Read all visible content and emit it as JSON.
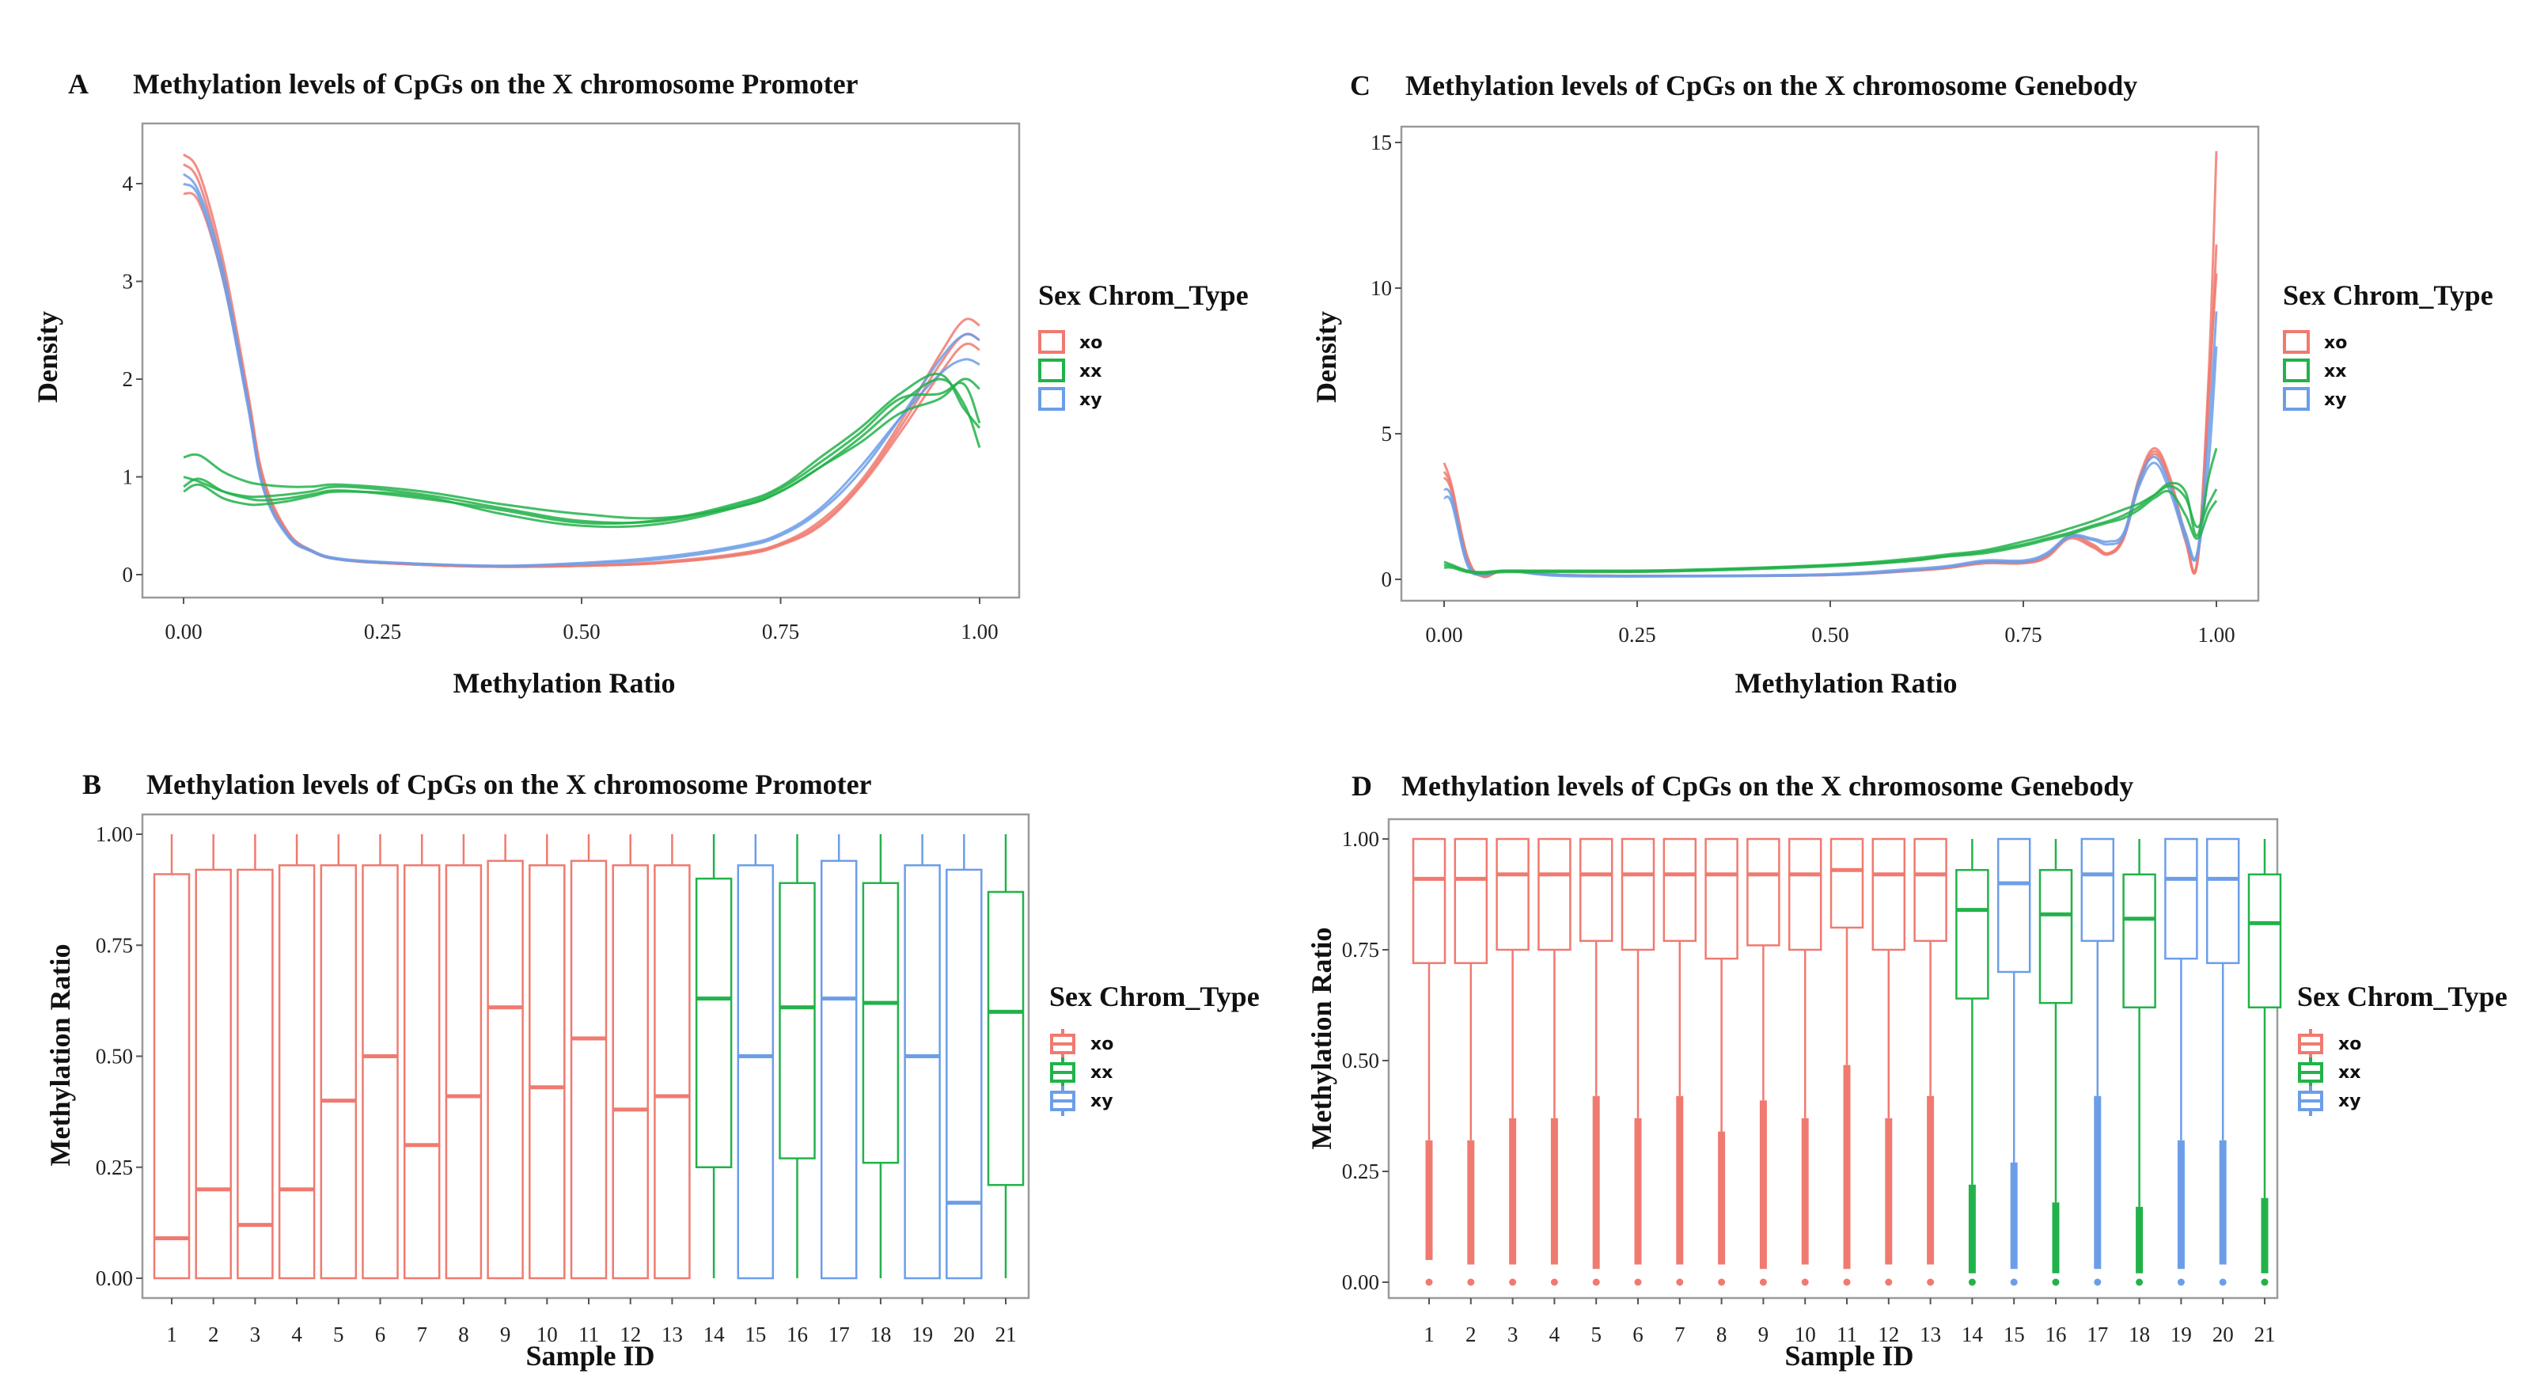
{
  "colors": {
    "xo": "#F07A70",
    "xx": "#22B24A",
    "xy": "#6C9EE8"
  },
  "legend": {
    "title": "Sex Chrom_Type",
    "items": [
      "xo",
      "xx",
      "xy"
    ]
  },
  "chart_data": [
    {
      "panel": "A",
      "type": "line",
      "title": "Methylation  levels of CpGs on the X chromosome Promoter",
      "xlabel": "Methylation Ratio",
      "ylabel": "Density",
      "xlim": [
        0,
        1
      ],
      "ylim": [
        0,
        4.4
      ],
      "x_ticks": [
        "0.00",
        "0.25",
        "0.50",
        "0.75",
        "1.00"
      ],
      "y_ticks": [
        "0",
        "1",
        "2",
        "3",
        "4"
      ],
      "x": [
        0,
        0.02,
        0.05,
        0.08,
        0.1,
        0.13,
        0.16,
        0.2,
        0.3,
        0.4,
        0.5,
        0.6,
        0.7,
        0.75,
        0.8,
        0.85,
        0.9,
        0.95,
        0.98,
        1.0
      ],
      "series": [
        {
          "group": "xo",
          "values": [
            4.3,
            4.1,
            3.2,
            1.9,
            1.0,
            0.45,
            0.25,
            0.15,
            0.1,
            0.08,
            0.09,
            0.13,
            0.22,
            0.32,
            0.55,
            0.95,
            1.55,
            2.25,
            2.6,
            2.55
          ]
        },
        {
          "group": "xo",
          "values": [
            3.9,
            3.8,
            3.0,
            1.8,
            0.95,
            0.42,
            0.24,
            0.15,
            0.1,
            0.08,
            0.09,
            0.12,
            0.2,
            0.3,
            0.5,
            0.9,
            1.45,
            2.05,
            2.35,
            2.3
          ]
        },
        {
          "group": "xo",
          "values": [
            4.2,
            4.0,
            3.1,
            1.85,
            0.97,
            0.44,
            0.25,
            0.15,
            0.1,
            0.08,
            0.09,
            0.12,
            0.21,
            0.31,
            0.52,
            0.92,
            1.5,
            2.15,
            2.45,
            2.4
          ]
        },
        {
          "group": "xy",
          "values": [
            4.1,
            3.9,
            3.1,
            1.8,
            0.9,
            0.42,
            0.25,
            0.16,
            0.11,
            0.09,
            0.11,
            0.16,
            0.28,
            0.4,
            0.65,
            1.05,
            1.6,
            2.2,
            2.45,
            2.4
          ]
        },
        {
          "group": "xy",
          "values": [
            4.0,
            3.85,
            3.0,
            1.75,
            0.88,
            0.4,
            0.24,
            0.15,
            0.11,
            0.09,
            0.12,
            0.18,
            0.3,
            0.42,
            0.68,
            1.1,
            1.6,
            2.05,
            2.2,
            2.15
          ]
        },
        {
          "group": "xx",
          "values": [
            1.2,
            1.22,
            1.05,
            0.95,
            0.92,
            0.9,
            0.9,
            0.92,
            0.85,
            0.72,
            0.62,
            0.58,
            0.7,
            0.85,
            1.1,
            1.4,
            1.75,
            2.0,
            1.75,
            1.3
          ]
        },
        {
          "group": "xx",
          "values": [
            1.0,
            0.95,
            0.85,
            0.8,
            0.8,
            0.82,
            0.85,
            0.9,
            0.82,
            0.68,
            0.55,
            0.55,
            0.72,
            0.88,
            1.15,
            1.45,
            1.8,
            1.85,
            1.95,
            1.55
          ]
        },
        {
          "group": "xx",
          "values": [
            0.85,
            0.92,
            0.78,
            0.72,
            0.72,
            0.75,
            0.8,
            0.85,
            0.8,
            0.62,
            0.5,
            0.52,
            0.7,
            0.85,
            1.1,
            1.35,
            1.65,
            1.8,
            2.0,
            1.9
          ]
        },
        {
          "group": "xx",
          "values": [
            0.9,
            0.98,
            0.85,
            0.78,
            0.76,
            0.78,
            0.82,
            0.86,
            0.78,
            0.66,
            0.53,
            0.56,
            0.74,
            0.9,
            1.2,
            1.5,
            1.85,
            2.05,
            1.7,
            1.5
          ]
        }
      ]
    },
    {
      "panel": "B",
      "type": "box",
      "title": "Methylation  levels of CpGs on the X chromosome Promoter",
      "xlabel": "Sample ID",
      "ylabel": "Methylation Ratio",
      "ylim": [
        0,
        1
      ],
      "y_ticks": [
        "0.00",
        "0.25",
        "0.50",
        "0.75",
        "1.00"
      ],
      "categories": [
        "1",
        "2",
        "3",
        "4",
        "5",
        "6",
        "7",
        "8",
        "9",
        "10",
        "11",
        "12",
        "13",
        "14",
        "15",
        "16",
        "17",
        "18",
        "19",
        "20",
        "21"
      ],
      "groups": [
        "xo",
        "xo",
        "xo",
        "xo",
        "xo",
        "xo",
        "xo",
        "xo",
        "xo",
        "xo",
        "xo",
        "xo",
        "xo",
        "xx",
        "xy",
        "xx",
        "xy",
        "xx",
        "xy",
        "xy",
        "xx"
      ],
      "boxes": [
        [
          0,
          0,
          0.09,
          0.91,
          1
        ],
        [
          0,
          0,
          0.2,
          0.92,
          1
        ],
        [
          0,
          0,
          0.12,
          0.92,
          1
        ],
        [
          0,
          0,
          0.2,
          0.93,
          1
        ],
        [
          0,
          0,
          0.4,
          0.93,
          1
        ],
        [
          0,
          0,
          0.5,
          0.93,
          1
        ],
        [
          0,
          0,
          0.3,
          0.93,
          1
        ],
        [
          0,
          0,
          0.41,
          0.93,
          1
        ],
        [
          0,
          0,
          0.61,
          0.94,
          1
        ],
        [
          0,
          0,
          0.43,
          0.93,
          1
        ],
        [
          0,
          0,
          0.54,
          0.94,
          1
        ],
        [
          0,
          0,
          0.38,
          0.93,
          1
        ],
        [
          0,
          0,
          0.41,
          0.93,
          1
        ],
        [
          0,
          0.25,
          0.63,
          0.9,
          1
        ],
        [
          0,
          0,
          0.5,
          0.93,
          1
        ],
        [
          0,
          0.27,
          0.61,
          0.89,
          1
        ],
        [
          0,
          0,
          0.63,
          0.94,
          1
        ],
        [
          0,
          0.26,
          0.62,
          0.89,
          1
        ],
        [
          0,
          0,
          0.5,
          0.93,
          1
        ],
        [
          0,
          0,
          0.17,
          0.92,
          1
        ],
        [
          0,
          0.21,
          0.6,
          0.87,
          1
        ]
      ]
    },
    {
      "panel": "C",
      "type": "line",
      "title": "Methylation  levels of CpGs on the X chromosome Genebody",
      "xlabel": "Methylation Ratio",
      "ylabel": "Density",
      "xlim": [
        0,
        1
      ],
      "ylim": [
        0,
        15
      ],
      "x_ticks": [
        "0.00",
        "0.25",
        "0.50",
        "0.75",
        "1.00"
      ],
      "y_ticks": [
        "0",
        "5",
        "10",
        "15"
      ],
      "x": [
        0,
        0.01,
        0.03,
        0.05,
        0.08,
        0.15,
        0.3,
        0.5,
        0.6,
        0.65,
        0.7,
        0.75,
        0.78,
        0.81,
        0.84,
        0.86,
        0.88,
        0.9,
        0.92,
        0.94,
        0.96,
        0.975,
        0.99,
        1.0
      ],
      "series": [
        {
          "group": "xo",
          "values": [
            4.0,
            3.2,
            0.8,
            0.1,
            0.3,
            0.15,
            0.12,
            0.15,
            0.3,
            0.4,
            0.6,
            0.6,
            0.8,
            1.5,
            1.2,
            0.9,
            1.5,
            3.5,
            4.5,
            3.5,
            1.5,
            0.6,
            7,
            14.7
          ]
        },
        {
          "group": "xo",
          "values": [
            3.5,
            3.0,
            0.7,
            0.1,
            0.3,
            0.15,
            0.12,
            0.15,
            0.28,
            0.38,
            0.55,
            0.55,
            0.75,
            1.4,
            1.1,
            0.85,
            1.4,
            3.3,
            4.3,
            3.3,
            1.3,
            0.5,
            6,
            11.5
          ]
        },
        {
          "group": "xo",
          "values": [
            3.7,
            3.1,
            0.75,
            0.1,
            0.3,
            0.15,
            0.12,
            0.15,
            0.29,
            0.39,
            0.57,
            0.57,
            0.78,
            1.45,
            1.15,
            0.88,
            1.45,
            3.4,
            4.4,
            3.4,
            1.4,
            0.55,
            6.5,
            10.5
          ]
        },
        {
          "group": "xy",
          "values": [
            3.1,
            2.8,
            0.6,
            0.15,
            0.3,
            0.15,
            0.12,
            0.18,
            0.35,
            0.45,
            0.65,
            0.65,
            0.9,
            1.5,
            1.4,
            1.3,
            1.6,
            3.4,
            4.2,
            3.2,
            1.6,
            0.9,
            5,
            9.2
          ]
        },
        {
          "group": "xy",
          "values": [
            2.8,
            2.6,
            0.5,
            0.15,
            0.3,
            0.12,
            0.1,
            0.15,
            0.3,
            0.42,
            0.6,
            0.6,
            0.85,
            1.45,
            1.35,
            1.2,
            1.5,
            3.2,
            4.0,
            3.0,
            1.4,
            0.8,
            4,
            8.0
          ]
        },
        {
          "group": "xx",
          "values": [
            0.6,
            0.5,
            0.3,
            0.25,
            0.3,
            0.3,
            0.32,
            0.5,
            0.7,
            0.85,
            1.0,
            1.3,
            1.5,
            1.75,
            2.0,
            2.2,
            2.4,
            2.6,
            2.9,
            3.2,
            2.8,
            1.8,
            2.6,
            3.1
          ]
        },
        {
          "group": "xx",
          "values": [
            0.5,
            0.45,
            0.28,
            0.22,
            0.28,
            0.28,
            0.3,
            0.48,
            0.65,
            0.8,
            0.95,
            1.2,
            1.4,
            1.6,
            1.85,
            2.0,
            2.2,
            2.5,
            2.9,
            3.3,
            3.0,
            1.5,
            3.5,
            4.5
          ]
        },
        {
          "group": "xx",
          "values": [
            0.4,
            0.4,
            0.25,
            0.2,
            0.25,
            0.25,
            0.28,
            0.45,
            0.62,
            0.78,
            0.9,
            1.15,
            1.35,
            1.55,
            1.8,
            1.95,
            2.1,
            2.4,
            2.8,
            3.0,
            2.2,
            1.4,
            2.3,
            2.7
          ]
        }
      ]
    },
    {
      "panel": "D",
      "type": "box",
      "title": "Methylation  levels of CpGs on the X chromosome Genebody",
      "xlabel": "Sample ID",
      "ylabel": "Methylation Ratio",
      "ylim": [
        0,
        1
      ],
      "y_ticks": [
        "0.00",
        "0.25",
        "0.50",
        "0.75",
        "1.00"
      ],
      "categories": [
        "1",
        "2",
        "3",
        "4",
        "5",
        "6",
        "7",
        "8",
        "9",
        "10",
        "11",
        "12",
        "13",
        "14",
        "15",
        "16",
        "17",
        "18",
        "19",
        "20",
        "21"
      ],
      "groups": [
        "xo",
        "xo",
        "xo",
        "xo",
        "xo",
        "xo",
        "xo",
        "xo",
        "xo",
        "xo",
        "xo",
        "xo",
        "xo",
        "xx",
        "xy",
        "xx",
        "xy",
        "xx",
        "xy",
        "xy",
        "xx"
      ],
      "boxes": [
        [
          0.32,
          0.72,
          0.91,
          1,
          1
        ],
        [
          0.32,
          0.72,
          0.91,
          1,
          1
        ],
        [
          0.37,
          0.75,
          0.92,
          1,
          1
        ],
        [
          0.37,
          0.75,
          0.92,
          1,
          1
        ],
        [
          0.42,
          0.77,
          0.92,
          1,
          1
        ],
        [
          0.37,
          0.75,
          0.92,
          1,
          1
        ],
        [
          0.42,
          0.77,
          0.92,
          1,
          1
        ],
        [
          0.34,
          0.73,
          0.92,
          1,
          1
        ],
        [
          0.41,
          0.76,
          0.92,
          1,
          1
        ],
        [
          0.37,
          0.75,
          0.92,
          1,
          1
        ],
        [
          0.49,
          0.8,
          0.93,
          1,
          1
        ],
        [
          0.37,
          0.75,
          0.92,
          1,
          1
        ],
        [
          0.42,
          0.77,
          0.92,
          1,
          1
        ],
        [
          0.22,
          0.64,
          0.84,
          0.93,
          1
        ],
        [
          0.27,
          0.7,
          0.9,
          1,
          1
        ],
        [
          0.18,
          0.63,
          0.83,
          0.93,
          1
        ],
        [
          0.42,
          0.77,
          0.92,
          1,
          1
        ],
        [
          0.17,
          0.62,
          0.82,
          0.92,
          1
        ],
        [
          0.32,
          0.73,
          0.91,
          1,
          1
        ],
        [
          0.32,
          0.72,
          0.91,
          1,
          1
        ],
        [
          0.19,
          0.62,
          0.81,
          0.92,
          1
        ]
      ],
      "outlier_ranges": [
        [
          0.05,
          0.32
        ],
        [
          0.04,
          0.32
        ],
        [
          0.04,
          0.37
        ],
        [
          0.04,
          0.37
        ],
        [
          0.03,
          0.42
        ],
        [
          0.04,
          0.37
        ],
        [
          0.04,
          0.42
        ],
        [
          0.04,
          0.34
        ],
        [
          0.03,
          0.41
        ],
        [
          0.04,
          0.37
        ],
        [
          0.03,
          0.49
        ],
        [
          0.04,
          0.37
        ],
        [
          0.04,
          0.42
        ],
        [
          0.02,
          0.22
        ],
        [
          0.03,
          0.27
        ],
        [
          0.02,
          0.18
        ],
        [
          0.03,
          0.42
        ],
        [
          0.02,
          0.17
        ],
        [
          0.03,
          0.32
        ],
        [
          0.04,
          0.32
        ],
        [
          0.02,
          0.19
        ]
      ],
      "outlier_points": 0
    }
  ]
}
